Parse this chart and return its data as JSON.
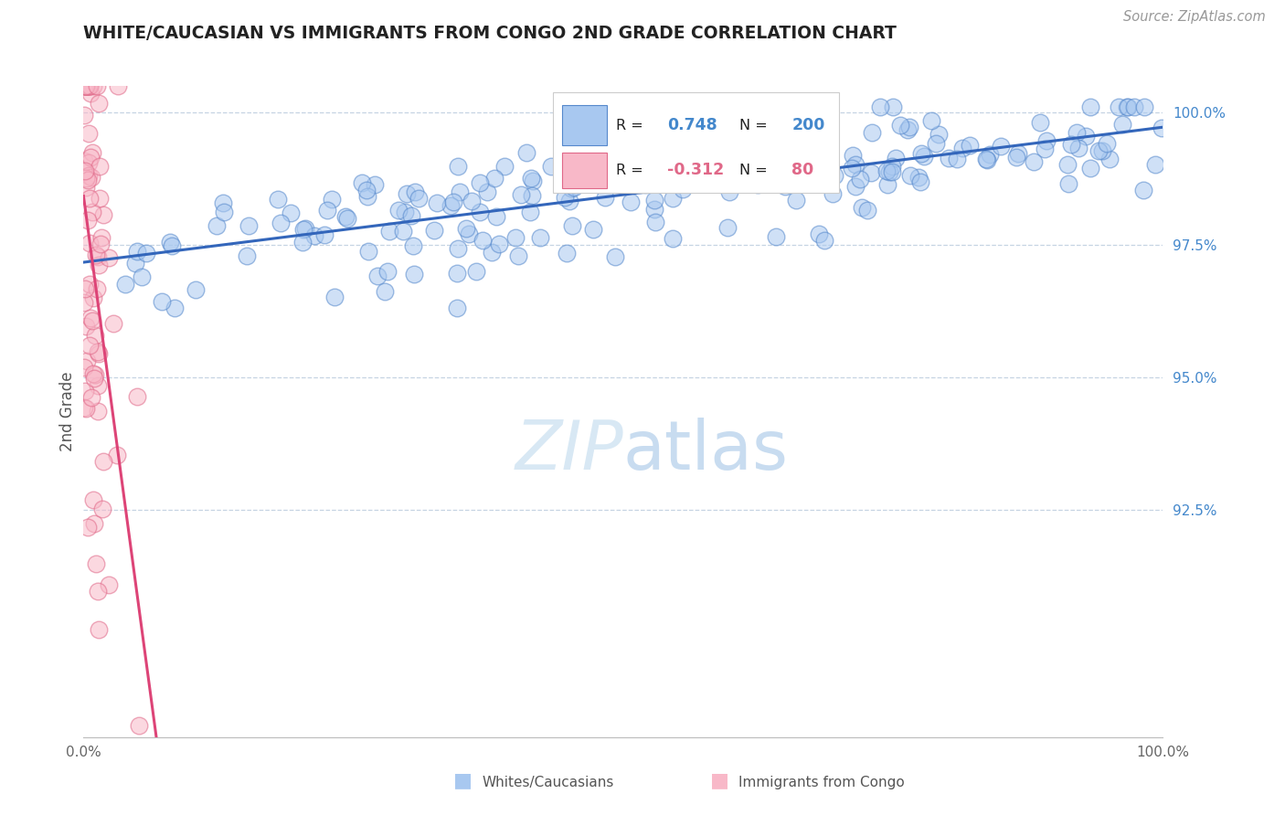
{
  "title": "WHITE/CAUCASIAN VS IMMIGRANTS FROM CONGO 2ND GRADE CORRELATION CHART",
  "source": "Source: ZipAtlas.com",
  "ylabel": "2nd Grade",
  "watermark": "ZIPatlas",
  "blue_R": 0.748,
  "blue_N": 200,
  "pink_R": -0.312,
  "pink_N": 80,
  "blue_color": "#A8C8F0",
  "blue_edge_color": "#5588CC",
  "blue_line_color": "#3366BB",
  "pink_color": "#F8B8C8",
  "pink_edge_color": "#E06888",
  "pink_line_color": "#DD4477",
  "bg_color": "#FFFFFF",
  "grid_color": "#C0D0E0",
  "right_tick_color": "#4488CC",
  "title_color": "#222222",
  "watermark_color": "#D8E8F4",
  "legend_text_dark": "#222222",
  "bottom_legend_text": "#555555"
}
